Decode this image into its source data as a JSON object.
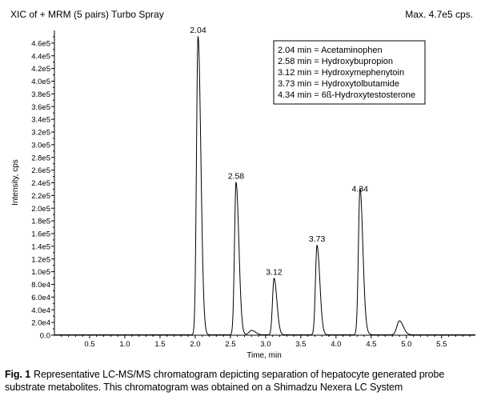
{
  "chart_data": {
    "type": "line",
    "title": "XIC of + MRM (5 pairs) Turbo Spray",
    "subtitle": "Max. 4.7e5 cps.",
    "xlabel": "Time, min",
    "ylabel": "Intensity, cps",
    "xlim": [
      0,
      5.98
    ],
    "ylim": [
      0,
      480000
    ],
    "x_ticks": [
      "0.5",
      "1.0",
      "1.5",
      "2.0",
      "2.5",
      "3.0",
      "3.5",
      "4.0",
      "4.5",
      "5.0",
      "5.5"
    ],
    "y_ticks": [
      "0.0",
      "2.0e4",
      "4.0e4",
      "6.0e4",
      "8.0e4",
      "1.0e5",
      "1.2e5",
      "1.4e5",
      "1.6e5",
      "1.8e5",
      "2.0e5",
      "2.2e5",
      "2.4e5",
      "2.6e5",
      "2.8e5",
      "3.0e5",
      "3.2e5",
      "3.4e5",
      "3.6e5",
      "3.8e5",
      "4.0e5",
      "4.2e5",
      "4.4e5",
      "4.6e5"
    ],
    "peaks": [
      {
        "label": "2.04",
        "x": 2.04,
        "y": 470000
      },
      {
        "label": "2.58",
        "x": 2.58,
        "y": 240000
      },
      {
        "label": "3.12",
        "x": 3.12,
        "y": 89000
      },
      {
        "label": "3.73",
        "x": 3.73,
        "y": 141000
      },
      {
        "label": "4.34",
        "x": 4.34,
        "y": 220000
      }
    ],
    "minor_peaks": [
      {
        "x": 2.8,
        "y": 7000
      },
      {
        "x": 4.36,
        "y": 12000
      },
      {
        "x": 4.9,
        "y": 22000
      }
    ],
    "legend": [
      "2.04 min = Acetaminophen",
      "2.58 min = Hydroxybupropion",
      "3.12 min = Hydroxymephenytoin",
      "3.73 min = Hydroxytolbutamide",
      "4.34 min = 6ß-Hydroxytestosterone"
    ],
    "legend_position": "top-right",
    "grid": false
  },
  "caption": {
    "label": "Fig. 1",
    "text": "Representative LC-MS/MS chromatogram depicting separation of hepatocyte generated probe substrate metabolites. This chromatogram was obtained on a Shimadzu Nexera LC System"
  },
  "colors": {
    "line": "#000000",
    "background": "#ffffff"
  }
}
